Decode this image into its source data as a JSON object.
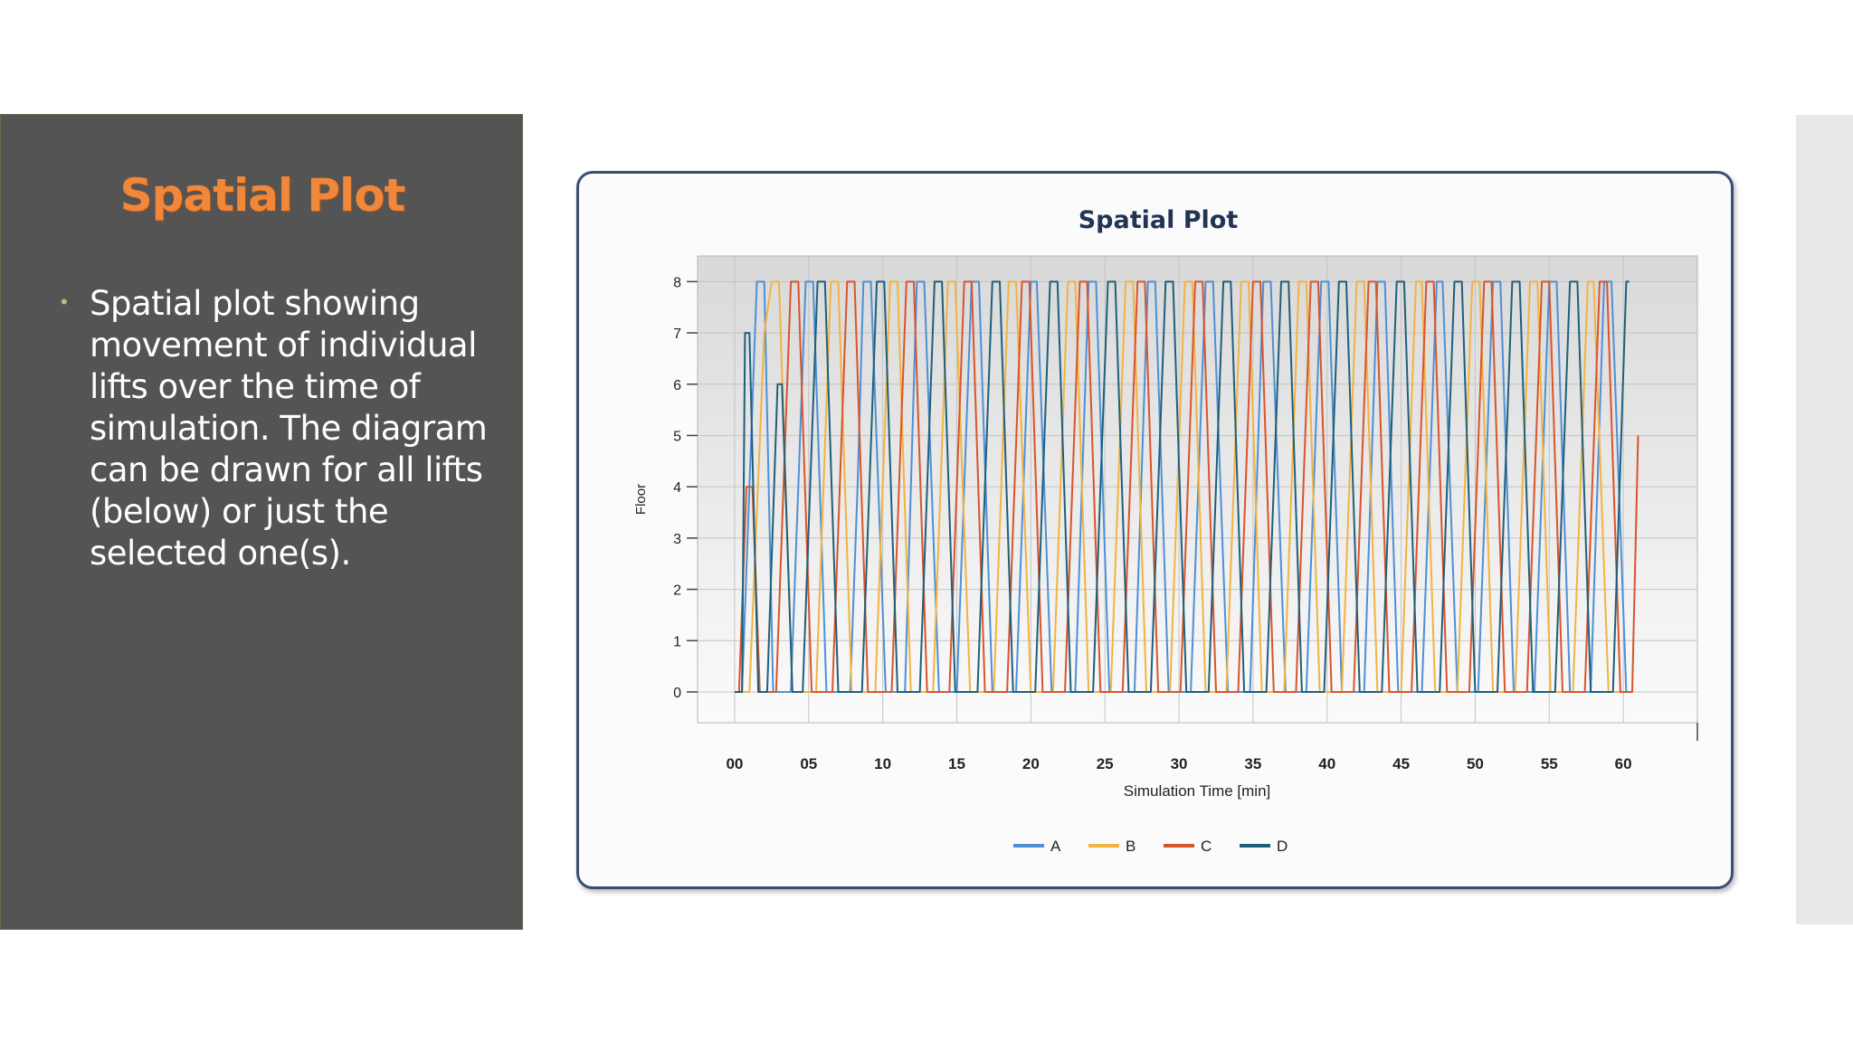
{
  "slide": {
    "title": "Spatial Plot",
    "bullet": "Spatial plot showing movement of individual lifts over the time of simulation. The diagram can be drawn for all lifts (below) or just the selected one(s)."
  },
  "chart_data": {
    "type": "line",
    "title": "Spatial Plot",
    "xlabel": "Simulation Time [min]",
    "ylabel": "Floor",
    "xlim": [
      -2.5,
      65
    ],
    "ylim": [
      -0.6,
      8.5
    ],
    "x_ticks": [
      "00",
      "05",
      "10",
      "15",
      "20",
      "25",
      "30",
      "35",
      "40",
      "45",
      "50",
      "55",
      "60"
    ],
    "y_ticks": [
      "0",
      "1",
      "2",
      "3",
      "4",
      "5",
      "6",
      "7",
      "8"
    ],
    "grid": true,
    "legend_position": "bottom",
    "series": [
      {
        "name": "A",
        "color": "#4f8fd6",
        "points": [
          [
            0,
            0
          ],
          [
            0.5,
            0
          ],
          [
            1.5,
            8
          ],
          [
            2,
            8
          ],
          [
            2.6,
            0
          ],
          [
            3.8,
            0
          ],
          [
            4.8,
            8
          ],
          [
            5.3,
            8
          ],
          [
            6.2,
            0
          ],
          [
            7.8,
            0
          ],
          [
            8.3,
            4
          ],
          [
            8.7,
            8
          ],
          [
            9.2,
            8
          ],
          [
            10.2,
            0
          ],
          [
            11.5,
            0
          ],
          [
            12.3,
            8
          ],
          [
            12.8,
            8
          ],
          [
            13.8,
            0
          ],
          [
            15,
            0
          ],
          [
            16,
            8
          ],
          [
            16.5,
            8
          ],
          [
            17.4,
            0
          ],
          [
            19,
            0
          ],
          [
            20,
            8
          ],
          [
            20.4,
            8
          ],
          [
            21.4,
            0
          ],
          [
            23,
            0
          ],
          [
            23.9,
            8
          ],
          [
            24.4,
            8
          ],
          [
            25.3,
            0
          ],
          [
            27,
            0
          ],
          [
            27.9,
            8
          ],
          [
            28.4,
            8
          ],
          [
            29.3,
            0
          ],
          [
            30.8,
            0
          ],
          [
            31.8,
            8
          ],
          [
            32.3,
            8
          ],
          [
            33.3,
            0
          ],
          [
            34.8,
            0
          ],
          [
            35.7,
            8
          ],
          [
            36.2,
            8
          ],
          [
            37.2,
            0
          ],
          [
            38.6,
            0
          ],
          [
            39.6,
            8
          ],
          [
            40.1,
            8
          ],
          [
            41,
            0
          ],
          [
            42.5,
            0
          ],
          [
            43.4,
            8
          ],
          [
            43.9,
            8
          ],
          [
            44.8,
            0
          ],
          [
            46.4,
            0
          ],
          [
            47.4,
            8
          ],
          [
            47.8,
            8
          ],
          [
            48.8,
            0
          ],
          [
            50.2,
            0
          ],
          [
            51.2,
            8
          ],
          [
            51.7,
            8
          ],
          [
            52.6,
            0
          ],
          [
            54,
            0
          ],
          [
            55,
            8
          ],
          [
            55.5,
            8
          ],
          [
            56.4,
            0
          ],
          [
            57.8,
            0
          ],
          [
            58.7,
            8
          ],
          [
            59.2,
            8
          ],
          [
            60.2,
            0
          ],
          [
            60.6,
            0
          ]
        ]
      },
      {
        "name": "B",
        "color": "#f2b340",
        "points": [
          [
            0,
            0
          ],
          [
            1,
            0
          ],
          [
            2,
            7
          ],
          [
            2.5,
            8
          ],
          [
            3,
            8
          ],
          [
            3.9,
            0
          ],
          [
            5.5,
            0
          ],
          [
            6.5,
            8
          ],
          [
            7,
            8
          ],
          [
            7.9,
            0
          ],
          [
            9.5,
            0
          ],
          [
            10.5,
            8
          ],
          [
            11,
            8
          ],
          [
            11.9,
            0
          ],
          [
            13.4,
            0
          ],
          [
            14.4,
            8
          ],
          [
            14.9,
            8
          ],
          [
            15.9,
            0
          ],
          [
            17.5,
            0
          ],
          [
            18.5,
            8
          ],
          [
            19,
            8
          ],
          [
            20,
            0
          ],
          [
            21.5,
            0
          ],
          [
            22.5,
            8
          ],
          [
            23,
            8
          ],
          [
            23.9,
            0
          ],
          [
            25.4,
            0
          ],
          [
            26.4,
            8
          ],
          [
            26.9,
            8
          ],
          [
            27.8,
            0
          ],
          [
            29.4,
            0
          ],
          [
            30.4,
            8
          ],
          [
            30.9,
            8
          ],
          [
            31.8,
            0
          ],
          [
            33.2,
            0
          ],
          [
            34.2,
            8
          ],
          [
            34.7,
            8
          ],
          [
            35.6,
            0
          ],
          [
            37.1,
            0
          ],
          [
            38.1,
            8
          ],
          [
            38.6,
            8
          ],
          [
            39.5,
            0
          ],
          [
            41,
            0
          ],
          [
            42,
            8
          ],
          [
            42.5,
            8
          ],
          [
            43.4,
            0
          ],
          [
            45,
            0
          ],
          [
            46,
            8
          ],
          [
            46.4,
            8
          ],
          [
            47.3,
            0
          ],
          [
            48.8,
            0
          ],
          [
            49.8,
            8
          ],
          [
            50.3,
            8
          ],
          [
            51.2,
            0
          ],
          [
            52.7,
            0
          ],
          [
            53.7,
            8
          ],
          [
            54.2,
            8
          ],
          [
            55.1,
            0
          ],
          [
            56.6,
            0
          ],
          [
            57.6,
            8
          ],
          [
            58,
            8
          ],
          [
            59,
            0
          ],
          [
            60.5,
            0
          ]
        ]
      },
      {
        "name": "C",
        "color": "#d9542b",
        "points": [
          [
            0,
            0
          ],
          [
            0.3,
            0
          ],
          [
            0.8,
            4
          ],
          [
            1.2,
            4
          ],
          [
            1.7,
            0
          ],
          [
            2.8,
            0
          ],
          [
            3.8,
            8
          ],
          [
            4.3,
            8
          ],
          [
            5.2,
            0
          ],
          [
            6.6,
            0
          ],
          [
            7.6,
            8
          ],
          [
            8.1,
            8
          ],
          [
            9,
            0
          ],
          [
            10.6,
            0
          ],
          [
            11.6,
            8
          ],
          [
            12.1,
            8
          ],
          [
            13,
            0
          ],
          [
            14.5,
            0
          ],
          [
            15.5,
            8
          ],
          [
            16,
            8
          ],
          [
            16.9,
            0
          ],
          [
            18.4,
            0
          ],
          [
            19.4,
            8
          ],
          [
            19.9,
            8
          ],
          [
            20.8,
            0
          ],
          [
            22.3,
            0
          ],
          [
            23.3,
            8
          ],
          [
            23.8,
            8
          ],
          [
            24.7,
            0
          ],
          [
            26.2,
            0
          ],
          [
            27.2,
            8
          ],
          [
            27.7,
            8
          ],
          [
            28.6,
            0
          ],
          [
            30.1,
            0
          ],
          [
            31.1,
            8
          ],
          [
            31.6,
            8
          ],
          [
            32.5,
            0
          ],
          [
            34,
            0
          ],
          [
            35,
            8
          ],
          [
            35.5,
            8
          ],
          [
            36.4,
            0
          ],
          [
            37.9,
            0
          ],
          [
            38.9,
            8
          ],
          [
            39.4,
            8
          ],
          [
            40.3,
            0
          ],
          [
            41.8,
            0
          ],
          [
            42.8,
            8
          ],
          [
            43.3,
            8
          ],
          [
            44.2,
            0
          ],
          [
            45.7,
            0
          ],
          [
            46.7,
            8
          ],
          [
            47.2,
            8
          ],
          [
            48.1,
            0
          ],
          [
            49.6,
            0
          ],
          [
            50.6,
            8
          ],
          [
            51.1,
            8
          ],
          [
            52,
            0
          ],
          [
            53.5,
            0
          ],
          [
            54.5,
            8
          ],
          [
            55,
            8
          ],
          [
            55.9,
            0
          ],
          [
            57.4,
            0
          ],
          [
            58.4,
            8
          ],
          [
            58.9,
            8
          ],
          [
            59.8,
            0
          ],
          [
            60.6,
            0
          ],
          [
            61,
            5
          ]
        ]
      },
      {
        "name": "D",
        "color": "#1f5f7a",
        "points": [
          [
            0,
            0
          ],
          [
            0.5,
            0
          ],
          [
            0.7,
            7
          ],
          [
            1,
            7
          ],
          [
            1.6,
            0
          ],
          [
            2.2,
            0
          ],
          [
            2.9,
            6
          ],
          [
            3.2,
            6
          ],
          [
            3.9,
            0
          ],
          [
            4.6,
            0
          ],
          [
            5.6,
            8
          ],
          [
            6.1,
            8
          ],
          [
            7,
            0
          ],
          [
            8.6,
            0
          ],
          [
            9.6,
            8
          ],
          [
            10.1,
            8
          ],
          [
            11,
            0
          ],
          [
            12.5,
            0
          ],
          [
            13.5,
            8
          ],
          [
            14,
            8
          ],
          [
            14.9,
            0
          ],
          [
            16.4,
            0
          ],
          [
            17.4,
            8
          ],
          [
            17.9,
            8
          ],
          [
            18.8,
            0
          ],
          [
            20.3,
            0
          ],
          [
            21.3,
            8
          ],
          [
            21.8,
            8
          ],
          [
            22.7,
            0
          ],
          [
            24.2,
            0
          ],
          [
            25.2,
            8
          ],
          [
            25.7,
            8
          ],
          [
            26.6,
            0
          ],
          [
            28.1,
            0
          ],
          [
            29.1,
            8
          ],
          [
            29.6,
            8
          ],
          [
            30.5,
            0
          ],
          [
            32,
            0
          ],
          [
            33,
            8
          ],
          [
            33.5,
            8
          ],
          [
            34.4,
            0
          ],
          [
            35.9,
            0
          ],
          [
            36.9,
            8
          ],
          [
            37.4,
            8
          ],
          [
            38.3,
            0
          ],
          [
            39.8,
            0
          ],
          [
            40.8,
            8
          ],
          [
            41.3,
            8
          ],
          [
            42.2,
            0
          ],
          [
            43.7,
            0
          ],
          [
            44.7,
            8
          ],
          [
            45.2,
            8
          ],
          [
            46.1,
            0
          ],
          [
            47.6,
            0
          ],
          [
            48.6,
            8
          ],
          [
            49.1,
            8
          ],
          [
            50,
            0
          ],
          [
            51.5,
            0
          ],
          [
            52.5,
            8
          ],
          [
            53,
            8
          ],
          [
            53.9,
            0
          ],
          [
            55.4,
            0
          ],
          [
            56.4,
            8
          ],
          [
            56.9,
            8
          ],
          [
            57.8,
            0
          ],
          [
            59.3,
            0
          ],
          [
            60.2,
            8
          ],
          [
            60.4,
            8
          ]
        ]
      }
    ]
  }
}
